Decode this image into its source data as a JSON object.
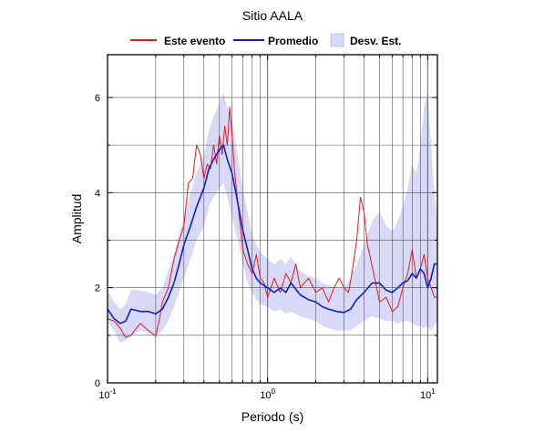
{
  "chart_data": {
    "type": "line",
    "title": "Sitio AALA",
    "xlabel": "Periodo (s)",
    "ylabel": "Amplitud",
    "xscale": "log",
    "xlim": [
      0.1,
      11.5
    ],
    "ylim": [
      0,
      6.9
    ],
    "grid": true,
    "legend_position": "top",
    "x_ticks": [
      {
        "value": 0.1,
        "base": "10",
        "exp": "-1"
      },
      {
        "value": 1,
        "base": "10",
        "exp": "0"
      },
      {
        "value": 10,
        "base": "10",
        "exp": "1"
      }
    ],
    "y_ticks": [
      {
        "value": 0,
        "label": "0"
      },
      {
        "value": 2,
        "label": "2"
      },
      {
        "value": 4,
        "label": "4"
      },
      {
        "value": 6,
        "label": "6"
      }
    ],
    "legend": [
      {
        "label": "Este evento",
        "kind": "line",
        "color": "#e8191f"
      },
      {
        "label": "Promedio",
        "kind": "line",
        "color": "#1020c8"
      },
      {
        "label": "Desv. Est.",
        "kind": "band",
        "color": "#d7d9f7"
      }
    ],
    "series": [
      {
        "name": "Este evento",
        "color": "#e8191f",
        "x": [
          0.1,
          0.11,
          0.12,
          0.13,
          0.14,
          0.16,
          0.18,
          0.2,
          0.21,
          0.22,
          0.24,
          0.26,
          0.28,
          0.3,
          0.32,
          0.34,
          0.36,
          0.38,
          0.4,
          0.42,
          0.44,
          0.46,
          0.48,
          0.5,
          0.52,
          0.54,
          0.56,
          0.58,
          0.6,
          0.62,
          0.65,
          0.7,
          0.75,
          0.8,
          0.85,
          0.9,
          0.95,
          1.0,
          1.1,
          1.2,
          1.3,
          1.4,
          1.5,
          1.6,
          1.8,
          2.0,
          2.2,
          2.4,
          2.6,
          2.8,
          3.0,
          3.2,
          3.4,
          3.6,
          3.8,
          4.0,
          4.2,
          4.4,
          4.6,
          4.8,
          5.0,
          5.5,
          6.0,
          6.5,
          7.0,
          7.5,
          8.0,
          8.5,
          9.0,
          9.5,
          10.0,
          10.5,
          11.0,
          11.5
        ],
        "values": [
          1.35,
          1.3,
          1.15,
          0.95,
          1.0,
          1.25,
          1.1,
          0.98,
          1.3,
          1.7,
          2.0,
          2.6,
          3.0,
          3.3,
          4.2,
          4.3,
          5.0,
          4.8,
          4.3,
          4.6,
          4.5,
          5.0,
          4.6,
          5.2,
          4.8,
          5.4,
          5.0,
          5.8,
          5.2,
          4.5,
          3.8,
          2.8,
          2.5,
          2.3,
          2.7,
          2.2,
          2.1,
          1.8,
          2.2,
          1.9,
          2.3,
          2.1,
          2.5,
          2.0,
          2.2,
          1.9,
          2.0,
          1.7,
          2.0,
          2.2,
          2.0,
          1.9,
          2.4,
          3.0,
          3.9,
          3.6,
          2.9,
          2.6,
          2.3,
          2.0,
          1.7,
          1.8,
          1.5,
          1.6,
          2.0,
          2.3,
          2.8,
          2.2,
          2.4,
          2.7,
          2.2,
          2.0,
          1.8,
          1.8
        ]
      },
      {
        "name": "Promedio",
        "color": "#1020c8",
        "x": [
          0.1,
          0.11,
          0.12,
          0.13,
          0.14,
          0.16,
          0.18,
          0.2,
          0.22,
          0.24,
          0.26,
          0.28,
          0.3,
          0.33,
          0.36,
          0.4,
          0.43,
          0.46,
          0.5,
          0.53,
          0.56,
          0.6,
          0.65,
          0.7,
          0.75,
          0.8,
          0.85,
          0.9,
          1.0,
          1.1,
          1.2,
          1.3,
          1.4,
          1.6,
          1.8,
          2.0,
          2.2,
          2.4,
          2.7,
          3.0,
          3.3,
          3.6,
          4.0,
          4.5,
          5.0,
          5.5,
          6.0,
          6.5,
          7.0,
          7.5,
          8.0,
          8.5,
          9.0,
          9.5,
          10.0,
          10.5,
          11.0,
          11.5
        ],
        "values": [
          1.55,
          1.35,
          1.25,
          1.3,
          1.55,
          1.5,
          1.5,
          1.45,
          1.55,
          1.8,
          2.1,
          2.5,
          2.9,
          3.3,
          3.7,
          4.1,
          4.5,
          4.7,
          4.9,
          5.0,
          4.7,
          4.4,
          3.8,
          3.2,
          2.8,
          2.4,
          2.2,
          2.1,
          2.0,
          1.9,
          2.0,
          1.9,
          2.1,
          1.85,
          1.75,
          1.7,
          1.6,
          1.55,
          1.5,
          1.48,
          1.55,
          1.75,
          1.9,
          2.1,
          2.1,
          1.95,
          1.9,
          2.0,
          2.1,
          2.15,
          2.3,
          2.2,
          2.4,
          2.3,
          2.0,
          2.2,
          2.5,
          2.5
        ]
      }
    ],
    "band": {
      "name": "Desv. Est.",
      "color": "#d7d9f7",
      "x": [
        0.1,
        0.11,
        0.12,
        0.13,
        0.14,
        0.16,
        0.18,
        0.2,
        0.22,
        0.24,
        0.26,
        0.28,
        0.3,
        0.33,
        0.36,
        0.4,
        0.43,
        0.46,
        0.5,
        0.53,
        0.56,
        0.6,
        0.65,
        0.7,
        0.75,
        0.8,
        0.85,
        0.9,
        1.0,
        1.1,
        1.2,
        1.3,
        1.4,
        1.6,
        1.8,
        2.0,
        2.2,
        2.4,
        2.7,
        3.0,
        3.3,
        3.6,
        4.0,
        4.5,
        5.0,
        5.5,
        6.0,
        6.5,
        7.0,
        7.5,
        8.0,
        8.5,
        9.0,
        9.5,
        10.0,
        10.5,
        11.0,
        11.5
      ],
      "lower": [
        1.3,
        1.1,
        0.85,
        0.9,
        1.0,
        1.1,
        1.05,
        1.0,
        1.1,
        1.3,
        1.6,
        1.9,
        2.2,
        2.6,
        3.0,
        3.3,
        3.7,
        3.9,
        4.1,
        4.2,
        3.9,
        3.5,
        3.0,
        2.5,
        2.1,
        1.9,
        1.75,
        1.65,
        1.6,
        1.5,
        1.55,
        1.45,
        1.5,
        1.4,
        1.35,
        1.3,
        1.2,
        1.15,
        1.1,
        1.1,
        1.1,
        1.2,
        1.3,
        1.4,
        1.35,
        1.3,
        1.3,
        1.25,
        1.3,
        1.3,
        1.25,
        1.2,
        1.2,
        1.15,
        1.2,
        1.1,
        1.2,
        1.3
      ],
      "upper": [
        1.95,
        1.7,
        1.55,
        1.65,
        1.95,
        1.95,
        1.9,
        1.85,
        2.0,
        2.35,
        2.7,
        3.1,
        3.5,
        4.0,
        4.4,
        4.8,
        5.3,
        5.6,
        5.9,
        6.1,
        5.8,
        5.5,
        4.8,
        4.1,
        3.6,
        3.1,
        2.9,
        2.75,
        2.6,
        2.5,
        2.6,
        2.5,
        2.65,
        2.35,
        2.25,
        2.2,
        2.1,
        2.05,
        2.0,
        2.0,
        2.2,
        2.5,
        2.9,
        3.4,
        3.6,
        3.3,
        3.2,
        3.4,
        3.7,
        4.1,
        4.6,
        4.4,
        5.0,
        5.8,
        6.1,
        5.0,
        4.0,
        3.4
      ]
    }
  }
}
